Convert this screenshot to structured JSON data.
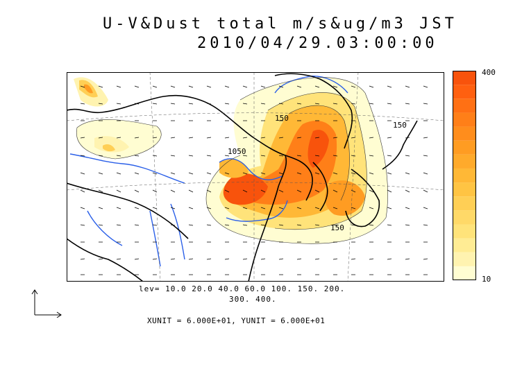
{
  "title": {
    "line1": "U-V&Dust total m/s&ug/m3 JST",
    "line2": "2010/04/29.03:00:00"
  },
  "legend": {
    "levels_line1": "lev= 10.0 20.0 40.0 60.0 100. 150. 200.",
    "levels_line2": "300. 400.",
    "units": "XUNIT = 6.000E+01, YUNIT = 6.000E+01"
  },
  "colorbar": {
    "max_label": "400",
    "min_label": "10",
    "colors": [
      "#fffdd2",
      "#fff3b0",
      "#ffec94",
      "#ffe37a",
      "#ffd968",
      "#ffcf55",
      "#ffc443",
      "#ffb836",
      "#ffaa2b",
      "#ff9c22",
      "#ff8d1c",
      "#ff7f18",
      "#ff7014",
      "#ff6010",
      "#f8530c"
    ]
  },
  "map": {
    "contour_labels": [
      {
        "text": "150"
      },
      {
        "text": "1050"
      },
      {
        "text": "150"
      },
      {
        "text": "150"
      }
    ]
  }
}
